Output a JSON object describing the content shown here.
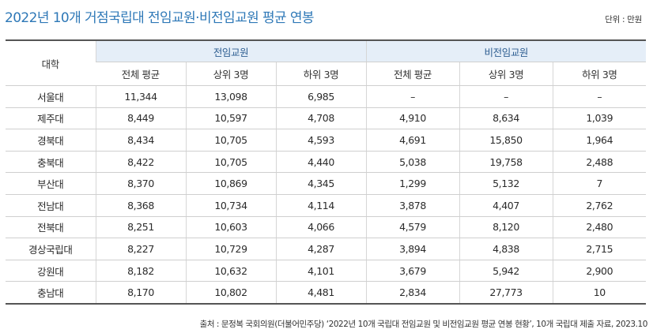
{
  "title": "2022년 10개 거점국립대 전임교원·비전임교원 평균 연봉",
  "unit": "단위 : 만원",
  "table": {
    "corner": "대학",
    "groups": [
      "전임교원",
      "비전임교원"
    ],
    "subheaders": [
      "전체 평균",
      "상위 3명",
      "하위 3명",
      "전체 평균",
      "상위 3명",
      "하위 3명"
    ],
    "rows": [
      [
        "서울대",
        "11,344",
        "13,098",
        "6,985",
        "–",
        "–",
        "–"
      ],
      [
        "제주대",
        "8,449",
        "10,597",
        "4,708",
        "4,910",
        "8,634",
        "1,039"
      ],
      [
        "경북대",
        "8,434",
        "10,705",
        "4,593",
        "4,691",
        "15,850",
        "1,964"
      ],
      [
        "충북대",
        "8,422",
        "10,705",
        "4,440",
        "5,038",
        "19,758",
        "2,488"
      ],
      [
        "부산대",
        "8,370",
        "10,869",
        "4,345",
        "1,299",
        "5,132",
        "7"
      ],
      [
        "전남대",
        "8,368",
        "10,734",
        "4,114",
        "3,878",
        "4,407",
        "2,762"
      ],
      [
        "전북대",
        "8,251",
        "10,603",
        "4,066",
        "4,579",
        "8,120",
        "2,480"
      ],
      [
        "경상국립대",
        "8,227",
        "10,729",
        "4,287",
        "3,894",
        "4,838",
        "2,715"
      ],
      [
        "강원대",
        "8,182",
        "10,632",
        "4,101",
        "3,679",
        "5,942",
        "2,900"
      ],
      [
        "충남대",
        "8,170",
        "10,802",
        "4,481",
        "2,834",
        "27,773",
        "10"
      ]
    ]
  },
  "source": "출처 : 문정복 국회의원(더불어민주당) ‘2022년 10개 국립대 전임교원 및 비전임교원 평균 연봉 현황’, 10개 국립대 제출 자료, 2023.10",
  "colors": {
    "title": "#2e78b7",
    "group_header_bg": "#e5eef8",
    "group_header_text": "#2f5f92",
    "rule": "#555555"
  }
}
